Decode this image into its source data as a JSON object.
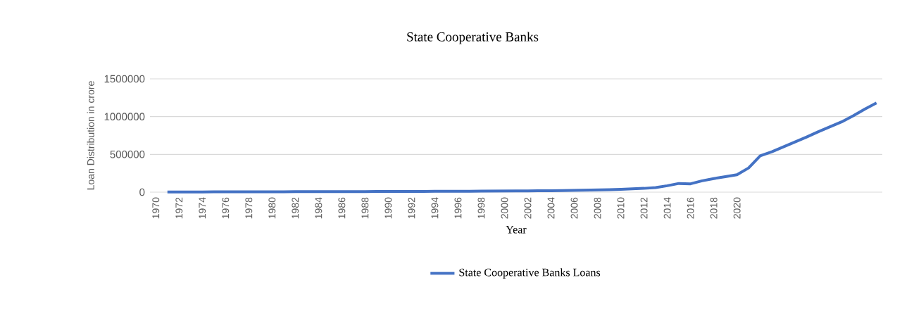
{
  "chart_data": {
    "type": "line",
    "title": "State Cooperative Banks",
    "xlabel": "Year",
    "ylabel": "Loan Distribution in crore",
    "categories": [
      "1970",
      null,
      "1972",
      null,
      "1974",
      null,
      "1976",
      null,
      "1978",
      null,
      "1980",
      null,
      "1982",
      null,
      "1984",
      null,
      "1986",
      null,
      "1988",
      null,
      "1990",
      null,
      "1992",
      null,
      "1994",
      null,
      "1996",
      null,
      "1998",
      null,
      "2000",
      null,
      "2002",
      null,
      "2004",
      null,
      "2006",
      null,
      "2008",
      null,
      "2010",
      null,
      "2012",
      null,
      "2014",
      null,
      "2016",
      null,
      "2018",
      null,
      "2020",
      null,
      null,
      null,
      null,
      null,
      null,
      null,
      null,
      null,
      null,
      null,
      null
    ],
    "series": [
      {
        "name": "State Cooperative Banks Loans",
        "color": "#4472c4",
        "values": [
          null,
          3000,
          3000,
          3000,
          3000,
          4000,
          4000,
          4000,
          5000,
          5000,
          5000,
          5000,
          6000,
          6000,
          6000,
          7000,
          7000,
          8000,
          8000,
          9000,
          9000,
          10000,
          10000,
          10000,
          11000,
          11000,
          12000,
          12000,
          13000,
          14000,
          15000,
          16000,
          17000,
          18000,
          19000,
          21000,
          24000,
          27000,
          30000,
          33000,
          38000,
          44000,
          50000,
          60000,
          85000,
          115000,
          110000,
          150000,
          180000,
          205000,
          230000,
          320000,
          480000,
          535000,
          600000,
          665000,
          730000,
          800000,
          865000,
          930000,
          1010000,
          1100000,
          1180000
        ]
      }
    ],
    "ylim": [
      0,
      1500000
    ],
    "yticks": [
      0,
      500000,
      1000000,
      1500000
    ],
    "grid": "y",
    "legend": "bottom",
    "marker": "none",
    "line_style": "solid"
  }
}
